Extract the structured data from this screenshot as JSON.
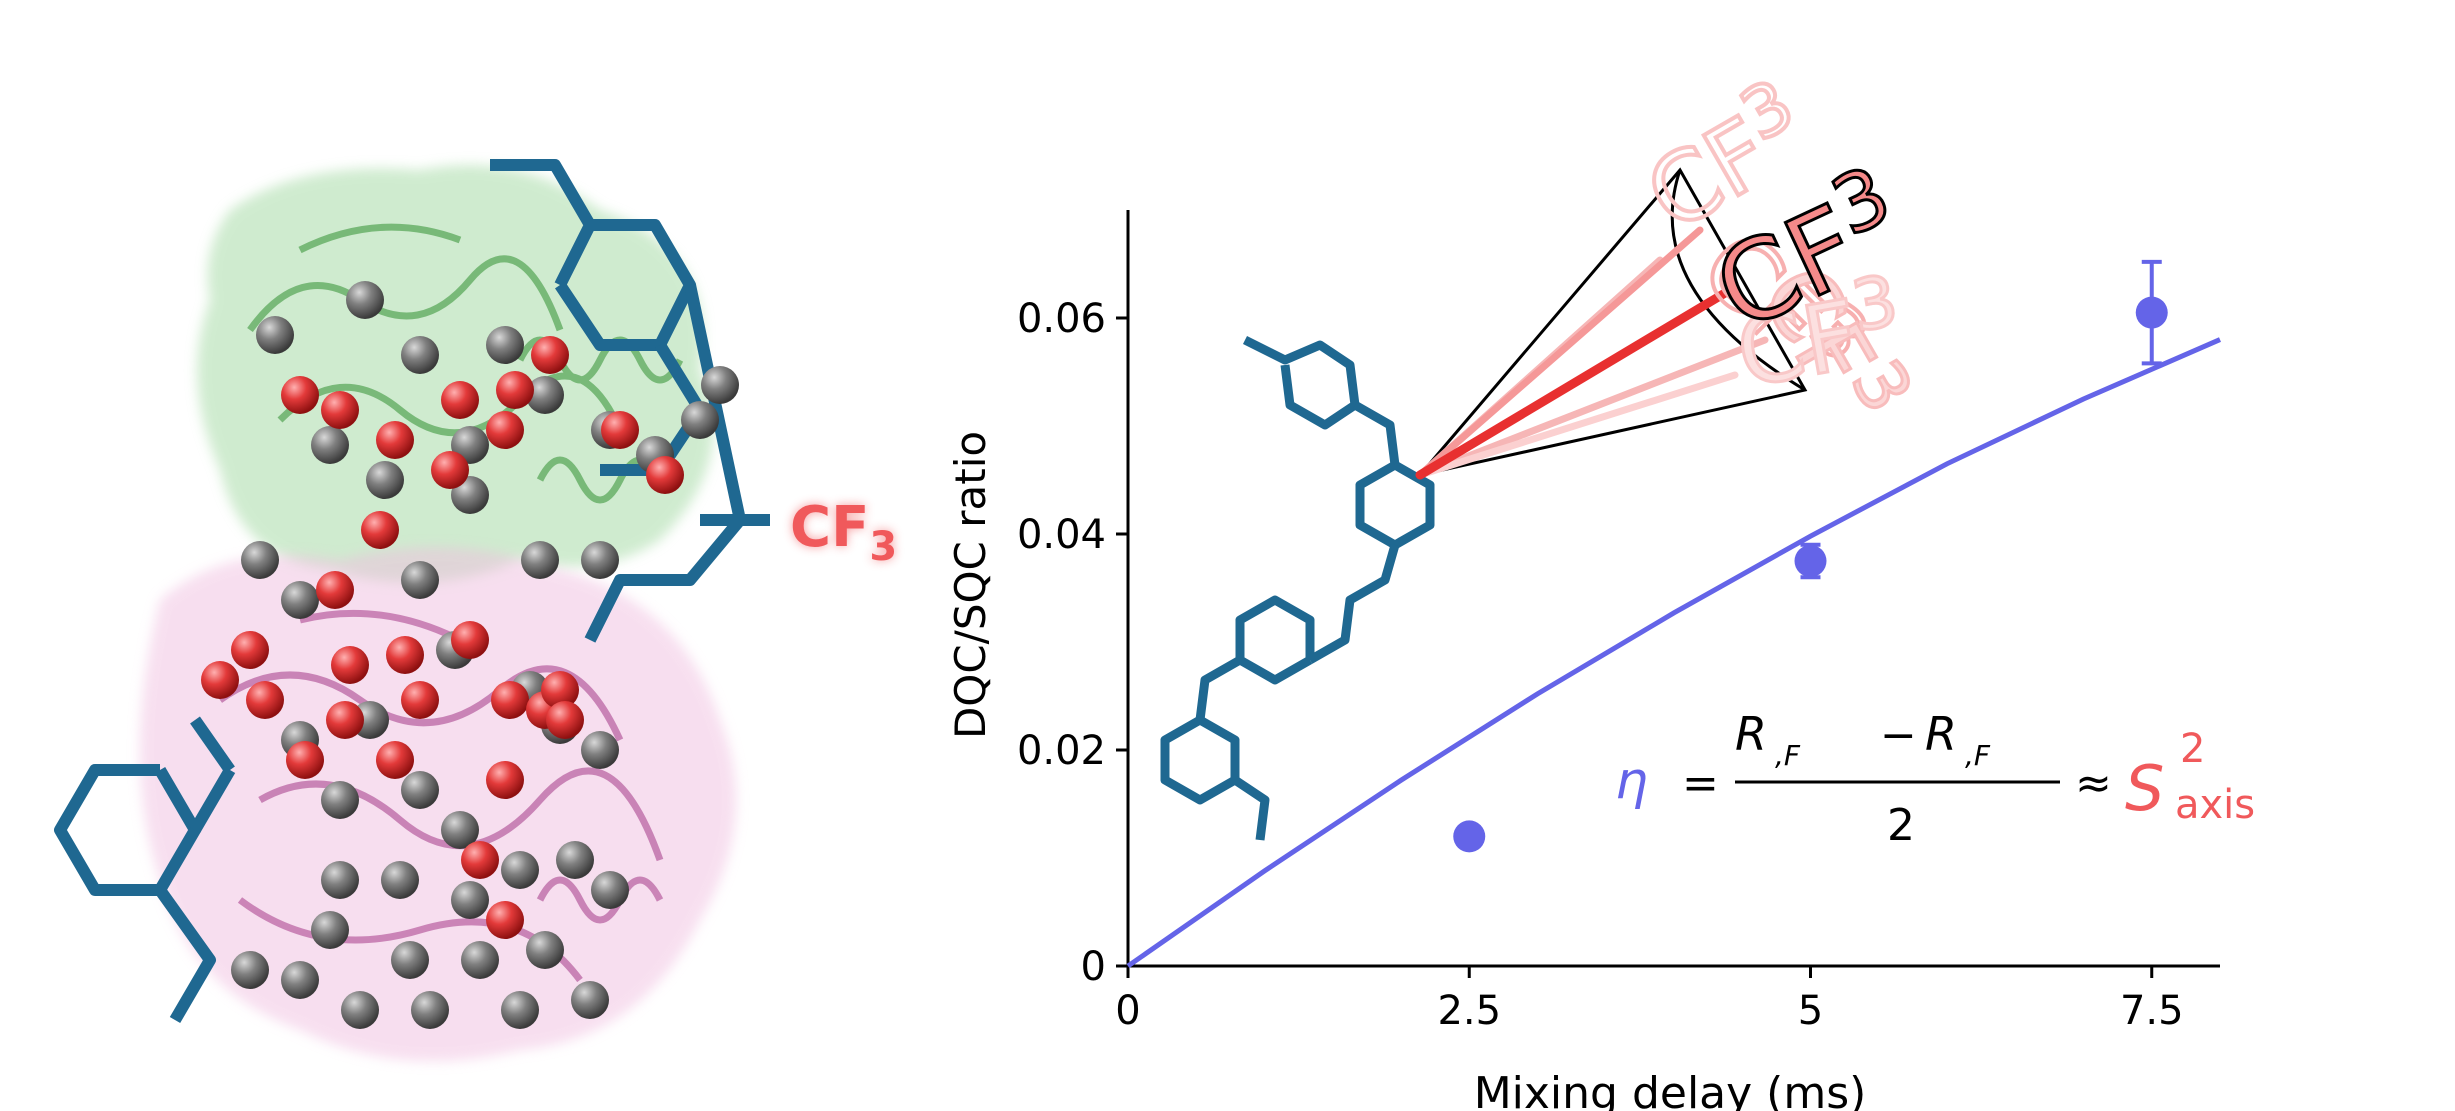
{
  "protein_panel": {
    "label_main": "CF",
    "label_sub": "3",
    "colors": {
      "domain_top": "#8fd08f",
      "domain_bottom": "#e7a6d4",
      "atom_grey": "#707070",
      "atom_red": "#e33a3a",
      "ligand_blue": "#1f6891",
      "label_red": "#f0595b"
    }
  },
  "chart_data": {
    "type": "scatter",
    "x": [
      2.5,
      5,
      7.5
    ],
    "y": [
      0.012,
      0.0375,
      0.0605
    ],
    "yerr": [
      0,
      0.0015,
      0.0047
    ],
    "fit_line": {
      "x": [
        0,
        1,
        2,
        3,
        4,
        5,
        6,
        7,
        8
      ],
      "y": [
        0,
        0.0088,
        0.0172,
        0.0252,
        0.0327,
        0.0398,
        0.0465,
        0.0525,
        0.058
      ]
    },
    "xlabel": "Mixing delay (ms)",
    "ylabel": "DQC/SQC ratio",
    "xlim": [
      0,
      8
    ],
    "ylim": [
      0,
      0.07
    ],
    "xticks": [
      0,
      2.5,
      5,
      7.5
    ],
    "xtick_labels": [
      "0",
      "2.5",
      "5",
      "7.5"
    ],
    "yticks": [
      0,
      0.02,
      0.04,
      0.06
    ],
    "ytick_labels": [
      "0",
      "0.02",
      "0.04",
      "0.06"
    ],
    "grid": false,
    "colors": {
      "series": "#6464e8",
      "axis": "#000000"
    }
  },
  "equation": {
    "eta": "η",
    "equals": "=",
    "num_R1": "R",
    "num_sub1": ",F",
    "minus": "−",
    "num_R2": "R",
    "num_sub2": ",F",
    "denominator": "2",
    "approx": "≈",
    "S": "S",
    "sup": "2",
    "sub": "axis"
  },
  "inset": {
    "label_main": "CF",
    "label_sub": "3"
  }
}
